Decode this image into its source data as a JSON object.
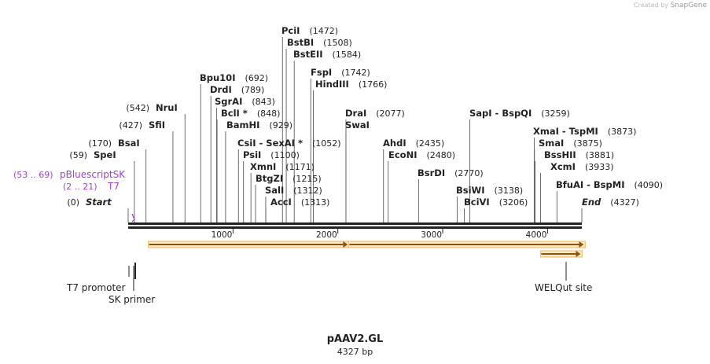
{
  "app": {
    "credit_prefix": "Created by",
    "credit_brand": "SnapGene"
  },
  "plasmid": {
    "name": "pAAV2.GL",
    "length_label": "4327 bp",
    "length": 4327
  },
  "colors": {
    "ink": "#222222",
    "primer": "#a040c8",
    "feature_fill": "#f5a623",
    "feature_edge": "#c07810"
  },
  "ticks": [
    {
      "pos": 1000,
      "label": "1000"
    },
    {
      "pos": 2000,
      "label": "2000"
    },
    {
      "pos": 3000,
      "label": "3000"
    },
    {
      "pos": 4000,
      "label": "4000"
    }
  ],
  "sites": [
    {
      "name": "PciI",
      "coord": "(1472)",
      "pos": 1472,
      "bold": true
    },
    {
      "name": "BstBI",
      "coord": "(1508)",
      "pos": 1508,
      "bold": true
    },
    {
      "name": "BstEII",
      "coord": "(1584)",
      "pos": 1584,
      "bold": true
    },
    {
      "name": "FspI",
      "coord": "(1742)",
      "pos": 1742,
      "bold": true
    },
    {
      "name": "Bpu10I",
      "coord": "(692)",
      "pos": 692,
      "bold": true
    },
    {
      "name": "HindIII",
      "coord": "(1766)",
      "pos": 1766,
      "bold": true
    },
    {
      "name": "DrdI",
      "coord": "(789)",
      "pos": 789,
      "bold": true
    },
    {
      "name": "NruI",
      "coord": "(542)",
      "pos": 542,
      "bold": true,
      "coord_left": true
    },
    {
      "name": "SgrAI",
      "coord": "(843)",
      "pos": 843,
      "bold": true
    },
    {
      "name": "BclI *",
      "coord": "(848)",
      "pos": 848,
      "bold": true
    },
    {
      "name": "DraI",
      "coord": "(2077)",
      "pos": 2077,
      "bold": true
    },
    {
      "name": "SapI  -  BspQI",
      "coord": "(3259)",
      "pos": 3259,
      "bold": true
    },
    {
      "name": "SwaI",
      "coord": "",
      "pos": 2077,
      "bold": true
    },
    {
      "name": "SfiI",
      "coord": "(427)",
      "pos": 427,
      "bold": true,
      "coord_left": true
    },
    {
      "name": "BamHI",
      "coord": "(929)",
      "pos": 929,
      "bold": true
    },
    {
      "name": "XmaI  -  TspMI",
      "coord": "(3873)",
      "pos": 3873,
      "bold": true
    },
    {
      "name": "BsaI",
      "coord": "(170)",
      "pos": 170,
      "bold": true,
      "coord_left": true
    },
    {
      "name": "CsiI  -  SexAI *",
      "coord": "(1052)",
      "pos": 1052,
      "bold": true
    },
    {
      "name": "AhdI",
      "coord": "(2435)",
      "pos": 2435,
      "bold": true
    },
    {
      "name": "SmaI",
      "coord": "(3875)",
      "pos": 3875,
      "bold": true
    },
    {
      "name": "SpeI",
      "coord": "(59)",
      "pos": 59,
      "bold": true,
      "coord_left": true
    },
    {
      "name": "PsiI",
      "coord": "(1100)",
      "pos": 1100,
      "bold": true
    },
    {
      "name": "EcoNI",
      "coord": "(2480)",
      "pos": 2480,
      "bold": true
    },
    {
      "name": "BssHII",
      "coord": "(3881)",
      "pos": 3881,
      "bold": true
    },
    {
      "name": "XmnI",
      "coord": "(1171)",
      "pos": 1171,
      "bold": true
    },
    {
      "name": "XcmI",
      "coord": "(3933)",
      "pos": 3933,
      "bold": true
    },
    {
      "name": "BtgZI",
      "coord": "(1215)",
      "pos": 1215,
      "bold": true
    },
    {
      "name": "BsrDI",
      "coord": "(2770)",
      "pos": 2770,
      "bold": true
    },
    {
      "name": "SalI",
      "coord": "(1312)",
      "pos": 1312,
      "bold": true
    },
    {
      "name": "BfuAI  -  BspMI",
      "coord": "(4090)",
      "pos": 4090,
      "bold": true
    },
    {
      "name": "BsiWI",
      "coord": "(3138)",
      "pos": 3138,
      "bold": true
    },
    {
      "name": "AccI",
      "coord": "(1313)",
      "pos": 1313,
      "bold": true
    },
    {
      "name": "BciVI",
      "coord": "(3206)",
      "pos": 3206,
      "bold": true
    },
    {
      "name": "Start",
      "coord": "(0)",
      "pos": 0,
      "bold": true,
      "italic": true,
      "coord_left": true
    },
    {
      "name": "End",
      "coord": "(4327)",
      "pos": 4327,
      "bold": true,
      "italic": true
    }
  ],
  "primers": [
    {
      "name": "pBluescriptSK",
      "coord": "(53 .. 69)"
    },
    {
      "name": "T7",
      "coord": "(2 .. 21)"
    }
  ],
  "features_below": [
    {
      "name": "T7 promoter"
    },
    {
      "name": "SK primer"
    },
    {
      "name": "WELQut site"
    }
  ],
  "feature_arrows": [
    {
      "start": 200,
      "end": 2050
    },
    {
      "start": 2110,
      "end": 4300
    },
    {
      "start": 3940,
      "end": 4270
    }
  ]
}
